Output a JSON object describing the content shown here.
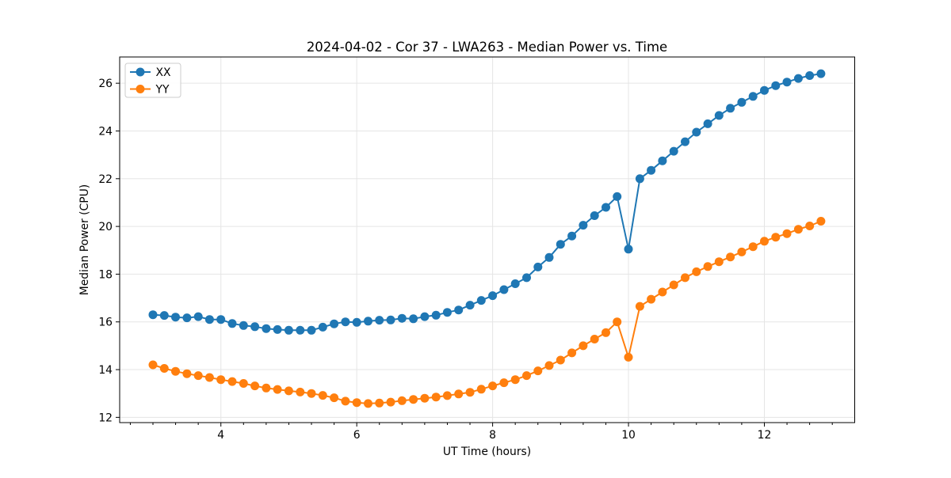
{
  "chart_data": {
    "type": "line",
    "title": "2024-04-02 - Cor 37 - LWA263 - Median Power vs. Time",
    "xlabel": "UT Time (hours)",
    "ylabel": "Median Power (CPU)",
    "xlim": [
      2.51,
      13.33
    ],
    "ylim": [
      11.78,
      27.1
    ],
    "xticks": [
      4,
      6,
      8,
      10,
      12
    ],
    "yticks": [
      12,
      14,
      16,
      18,
      20,
      22,
      24,
      26
    ],
    "minor_xtick_step": 0.33333,
    "grid": true,
    "grid_color": "#e5e5e5",
    "legend_position": "upper left",
    "marker": "o",
    "x": [
      3.0,
      3.167,
      3.333,
      3.5,
      3.667,
      3.833,
      4.0,
      4.167,
      4.333,
      4.5,
      4.667,
      4.833,
      5.0,
      5.167,
      5.333,
      5.5,
      5.667,
      5.833,
      6.0,
      6.167,
      6.333,
      6.5,
      6.667,
      6.833,
      7.0,
      7.167,
      7.333,
      7.5,
      7.667,
      7.833,
      8.0,
      8.167,
      8.333,
      8.5,
      8.667,
      8.833,
      9.0,
      9.167,
      9.333,
      9.5,
      9.667,
      9.833,
      10.0,
      10.167,
      10.333,
      10.5,
      10.667,
      10.833,
      11.0,
      11.167,
      11.333,
      11.5,
      11.667,
      11.833,
      12.0,
      12.167,
      12.333,
      12.5,
      12.667,
      12.833
    ],
    "series": [
      {
        "name": "XX",
        "color": "#1f77b4",
        "values": [
          16.3,
          16.27,
          16.2,
          16.17,
          16.22,
          16.1,
          16.1,
          15.93,
          15.85,
          15.8,
          15.72,
          15.68,
          15.65,
          15.65,
          15.65,
          15.78,
          15.92,
          16.0,
          15.98,
          16.03,
          16.07,
          16.08,
          16.15,
          16.13,
          16.22,
          16.28,
          16.4,
          16.5,
          16.7,
          16.9,
          17.1,
          17.35,
          17.6,
          17.85,
          18.3,
          18.7,
          19.25,
          19.6,
          20.05,
          20.45,
          20.8,
          21.25,
          19.05,
          22.0,
          22.35,
          22.75,
          23.15,
          23.55,
          23.95,
          24.3,
          24.65,
          24.95,
          25.2,
          25.45,
          25.7,
          25.9,
          26.05,
          26.2,
          26.32,
          26.4
        ]
      },
      {
        "name": "YY",
        "color": "#ff7f0e",
        "values": [
          14.2,
          14.05,
          13.93,
          13.83,
          13.75,
          13.67,
          13.58,
          13.5,
          13.42,
          13.32,
          13.23,
          13.17,
          13.11,
          13.06,
          13.0,
          12.92,
          12.82,
          12.68,
          12.62,
          12.58,
          12.6,
          12.64,
          12.7,
          12.75,
          12.8,
          12.85,
          12.91,
          12.98,
          13.05,
          13.18,
          13.32,
          13.45,
          13.58,
          13.75,
          13.95,
          14.17,
          14.4,
          14.7,
          15.0,
          15.28,
          15.55,
          16.0,
          14.52,
          16.65,
          16.95,
          17.25,
          17.55,
          17.85,
          18.1,
          18.32,
          18.52,
          18.72,
          18.93,
          19.15,
          19.38,
          19.55,
          19.7,
          19.88,
          20.02,
          20.22
        ]
      }
    ]
  }
}
